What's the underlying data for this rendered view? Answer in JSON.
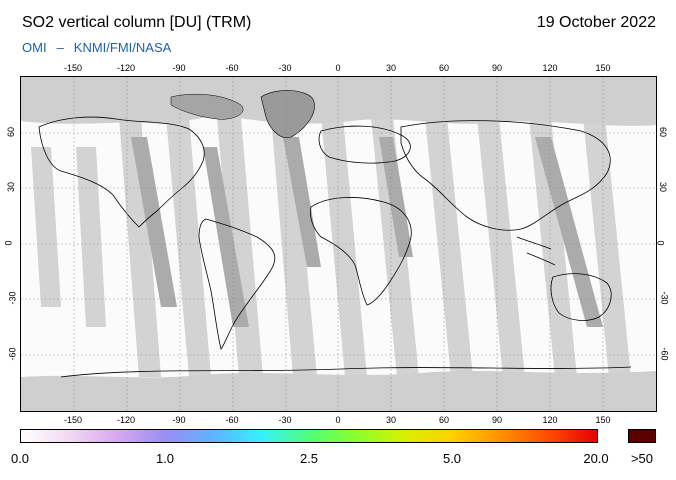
{
  "header": {
    "title": "SO2 vertical column [DU] (TRM)",
    "date": "19 October 2022",
    "credit_left": "OMI",
    "credit_sep": "–",
    "credit_right": "KNMI/FMI/NASA"
  },
  "map": {
    "longitude_ticks": [
      "-150",
      "-120",
      "-90",
      "-60",
      "-30",
      "0",
      "30",
      "60",
      "90",
      "120",
      "150"
    ],
    "latitude_ticks": [
      "60",
      "30",
      "0",
      "-30",
      "-60"
    ],
    "colors": {
      "no_data": "#cfcfcf",
      "swath_gap": "#a9a9a9",
      "land_mask": "#9a9a9a",
      "low_value": "#fbfbfb",
      "coastline": "#000000",
      "graticule": "#888888"
    }
  },
  "colorbar": {
    "labels": [
      "0.0",
      "1.0",
      "2.5",
      "5.0",
      "20.0",
      ">50"
    ],
    "gradient_colors": [
      "#ffffff",
      "#f2d9f2",
      "#d8a8f0",
      "#9a8ef2",
      "#5fb3ff",
      "#35f0ff",
      "#4fff7a",
      "#8cff2a",
      "#d8f000",
      "#ffd000",
      "#ff9000",
      "#ff4a00",
      "#e60000"
    ],
    "over_color": "#5a0000"
  }
}
